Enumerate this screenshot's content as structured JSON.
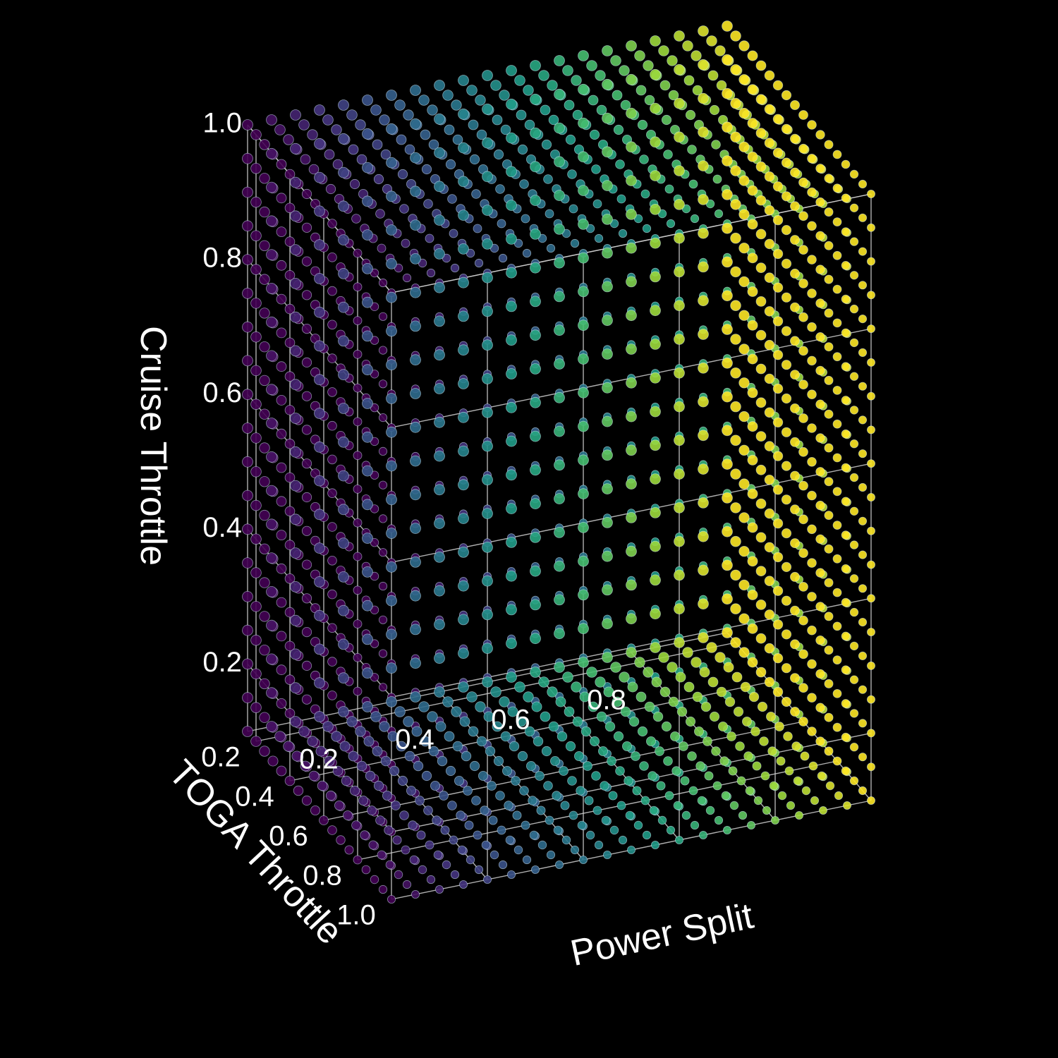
{
  "chart_data": {
    "type": "scatter",
    "projection": "3d",
    "title": "",
    "axes": {
      "x": {
        "label": "Power Split",
        "range": [
          0,
          1
        ],
        "ticks": [
          0.2,
          0.4,
          0.6,
          0.8
        ],
        "tick_labels": [
          "0.2",
          "0.4",
          "0.6",
          "0.8"
        ]
      },
      "y": {
        "label": "TOGA Throttle",
        "range": [
          0.15,
          1.0
        ],
        "ticks": [
          0.2,
          0.4,
          0.6,
          0.8,
          1.0
        ],
        "tick_labels": [
          "0.2",
          "0.4",
          "0.6",
          "0.8",
          "1.0"
        ]
      },
      "z": {
        "label": "Cruise Throttle",
        "range": [
          0.1,
          1.0
        ],
        "ticks": [
          0.2,
          0.4,
          0.6,
          0.8,
          1.0
        ],
        "tick_labels": [
          "0.2",
          "0.4",
          "0.6",
          "0.8",
          "1.0"
        ]
      }
    },
    "grid": {
      "x_values": {
        "start": 0.0,
        "stop": 1.0,
        "count": 21
      },
      "y_values": {
        "start": 0.15,
        "stop": 1.0,
        "count": 18
      },
      "z_values": {
        "start": 0.1,
        "stop": 1.0,
        "count": 19
      }
    },
    "color": {
      "colormap": "viridis",
      "by": "x",
      "range": [
        0,
        1
      ]
    },
    "colormap_stops": [
      "#440154",
      "#46327e",
      "#365c8d",
      "#277f8e",
      "#1fa187",
      "#4ac16d",
      "#a0da39",
      "#fde725"
    ],
    "marker": {
      "edge_color": "#d8f0ff",
      "alpha": 0.9
    },
    "grid_lines": true,
    "background": "#000000",
    "text_color": "#ffffff"
  }
}
